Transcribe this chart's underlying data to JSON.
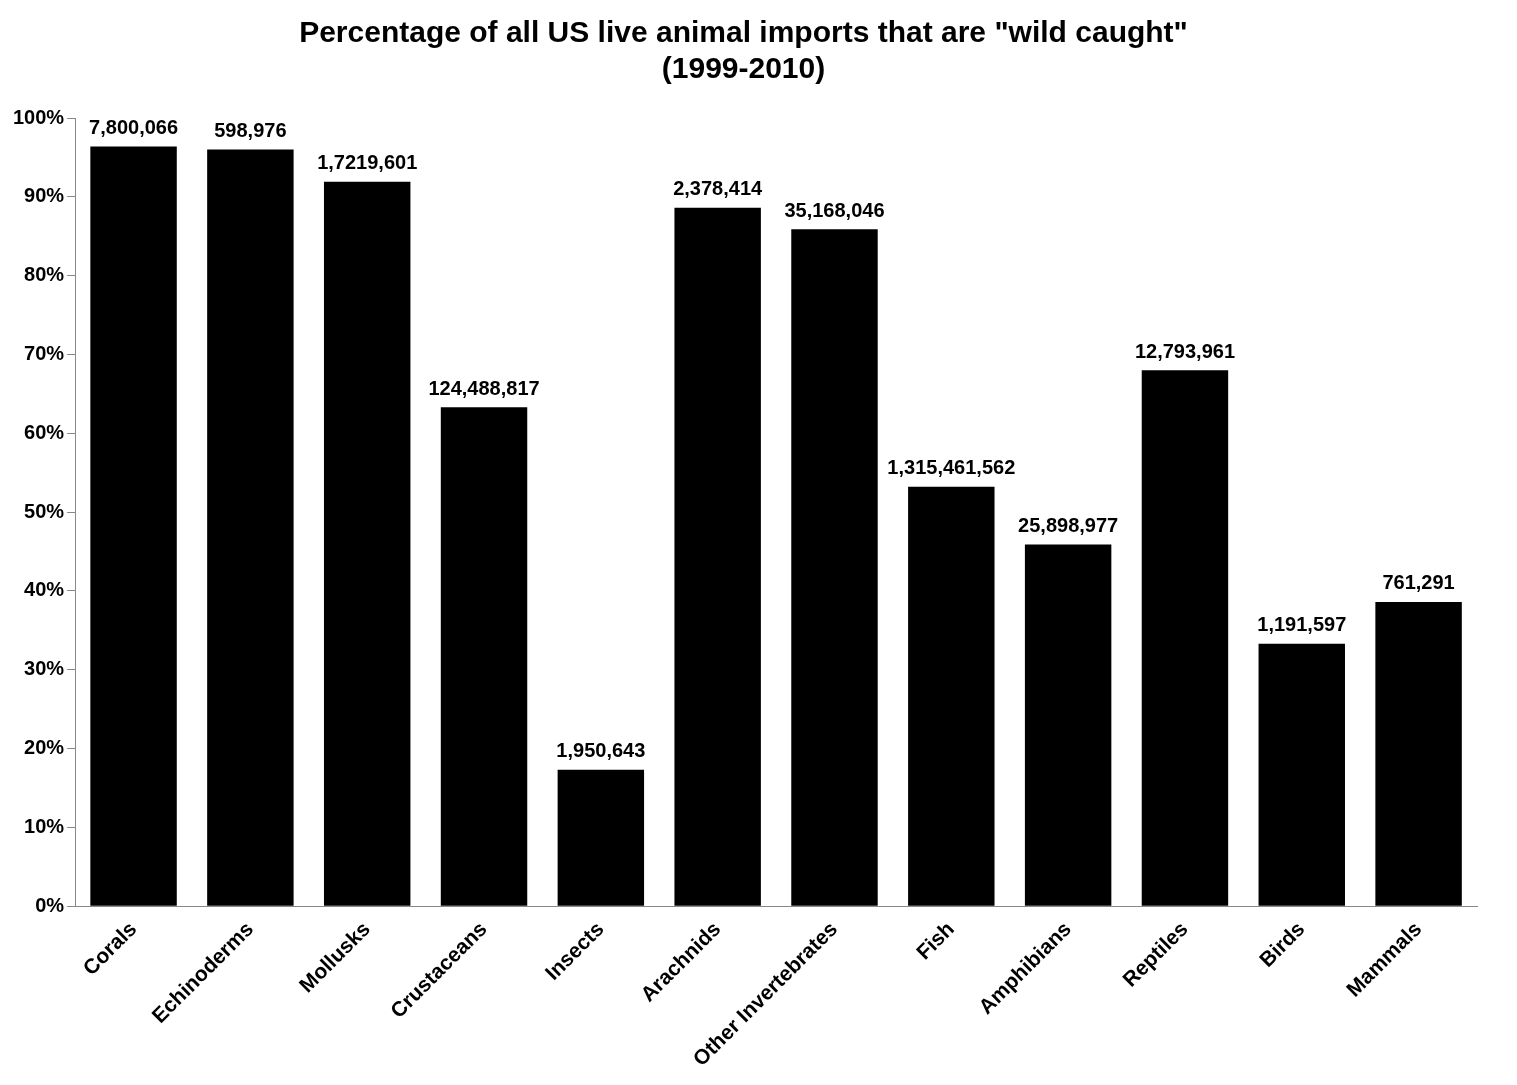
{
  "chart_data": {
    "type": "bar",
    "title": "Percentage of all US live animal imports that are \"wild caught\"\n(1999-2010)",
    "categories": [
      "Corals",
      "Echinoderms",
      "Mollusks",
      "Crustaceans",
      "Insects",
      "Arachnids",
      "Other Invertebrates",
      "Fish",
      "Amphibians",
      "Reptiles",
      "Birds",
      "Mammals"
    ],
    "values": [
      96.4,
      96.0,
      91.9,
      63.3,
      17.3,
      88.6,
      85.9,
      53.2,
      45.9,
      68.0,
      33.3,
      38.6
    ],
    "annotations": [
      {
        "text": "7,800,066",
        "x": "Corals",
        "y": 96.4
      },
      {
        "text": "598,976",
        "x": "Echinoderms",
        "y": 96.0
      },
      {
        "text": "1,7219,601",
        "x": "Mollusks",
        "y": 91.9
      },
      {
        "text": "124,488,817",
        "x": "Crustaceans",
        "y": 63.3
      },
      {
        "text": "1,950,643",
        "x": "Insects",
        "y": 17.3
      },
      {
        "text": "2,378,414",
        "x": "Arachnids",
        "y": 88.6
      },
      {
        "text": "35,168,046",
        "x": "Other Invertebrates",
        "y": 85.9
      },
      {
        "text": "1,315,461,562",
        "x": "Fish",
        "y": 53.2
      },
      {
        "text": "25,898,977",
        "x": "Amphibians",
        "y": 45.9
      },
      {
        "text": "12,793,961",
        "x": "Reptiles",
        "y": 68.0
      },
      {
        "text": "1,191,597",
        "x": "Birds",
        "y": 33.3
      },
      {
        "text": "761,291",
        "x": "Mammals",
        "y": 38.6
      }
    ],
    "color": "#000000",
    "ylim": [
      0,
      100
    ],
    "yticks": [
      {
        "value": 0,
        "label": "0%"
      },
      {
        "value": 10,
        "label": "10%"
      },
      {
        "value": 20,
        "label": "20%"
      },
      {
        "value": 30,
        "label": "30%"
      },
      {
        "value": 40,
        "label": "40%"
      },
      {
        "value": 50,
        "label": "50%"
      },
      {
        "value": 60,
        "label": "60%"
      },
      {
        "value": 70,
        "label": "70%"
      },
      {
        "value": 80,
        "label": "80%"
      },
      {
        "value": 90,
        "label": "90%"
      },
      {
        "value": 100,
        "label": "100%"
      }
    ],
    "grid": false,
    "legend": false
  }
}
